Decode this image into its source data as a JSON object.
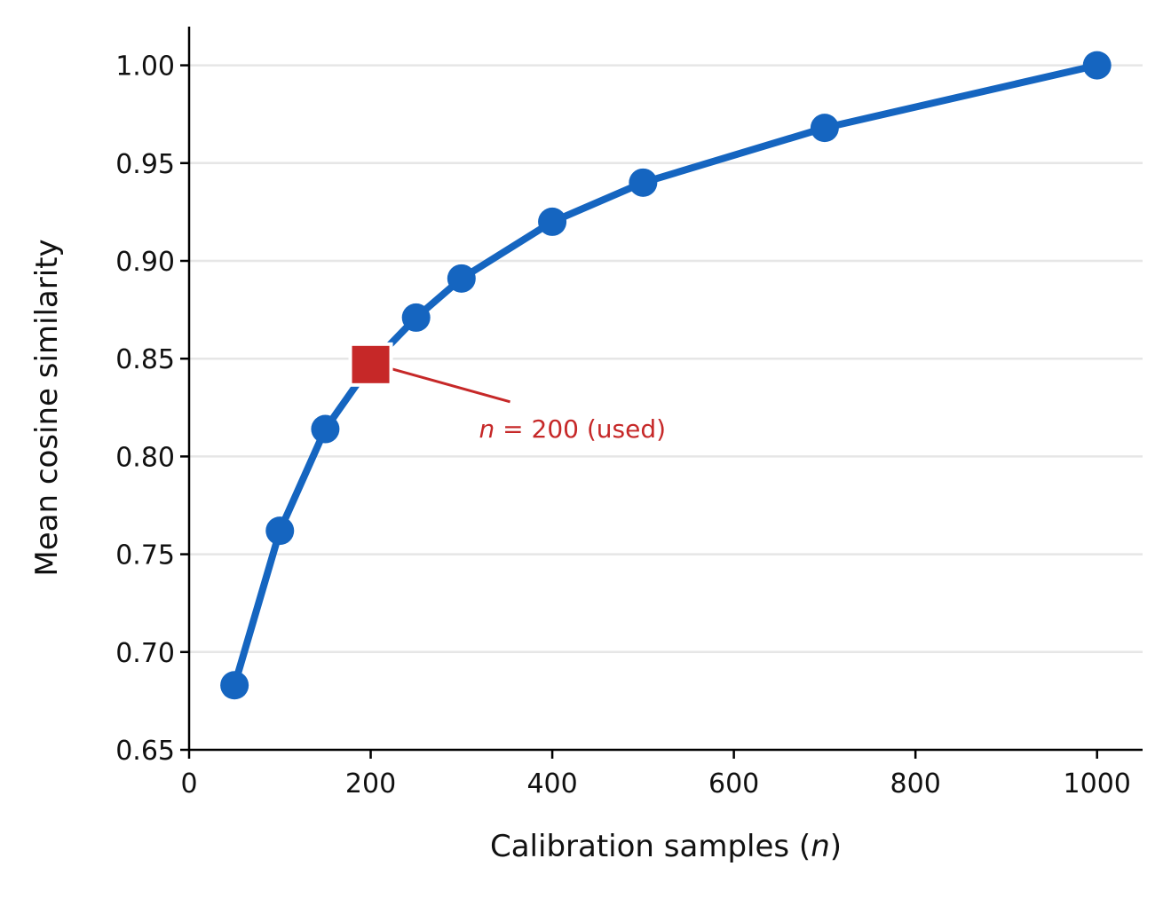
{
  "chart_data": {
    "type": "line",
    "title": "",
    "xlabel": "Calibration samples (",
    "xlabel_var": "n",
    "xlabel_suffix": ")",
    "ylabel": "Mean cosine similarity",
    "xlim": [
      0,
      1050
    ],
    "ylim": [
      0.65,
      1.02
    ],
    "xticks": [
      0,
      200,
      400,
      600,
      800,
      1000
    ],
    "xtick_labels": [
      "0",
      "200",
      "400",
      "600",
      "800",
      "1000"
    ],
    "yticks": [
      0.65,
      0.7,
      0.75,
      0.8,
      0.85,
      0.9,
      0.95,
      1.0
    ],
    "ytick_labels": [
      "0.65",
      "0.70",
      "0.75",
      "0.80",
      "0.85",
      "0.90",
      "0.95",
      "1.00"
    ],
    "grid": "horizontal",
    "series": [
      {
        "color": "#1565c0",
        "x": [
          50,
          100,
          150,
          200,
          250,
          300,
          400,
          500,
          700,
          1000
        ],
        "y": [
          0.683,
          0.762,
          0.814,
          0.847,
          0.871,
          0.891,
          0.92,
          0.94,
          0.968,
          1.0
        ]
      }
    ],
    "highlight": {
      "x": 200,
      "y": 0.847,
      "color": "#c62828",
      "label_var": "n",
      "label_text": " = 200 (used)"
    }
  }
}
